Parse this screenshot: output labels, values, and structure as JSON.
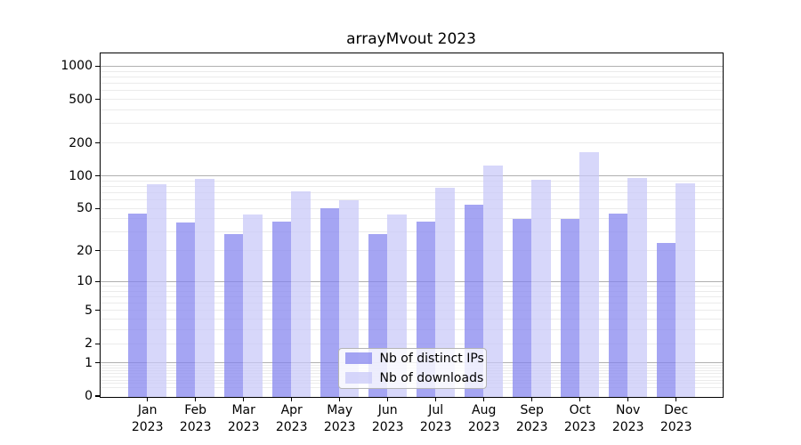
{
  "title": "arrayMvout 2023",
  "chart_data": {
    "type": "bar",
    "title": "arrayMvout 2023",
    "categories": [
      "Jan",
      "Feb",
      "Mar",
      "Apr",
      "May",
      "Jun",
      "Jul",
      "Aug",
      "Sep",
      "Oct",
      "Nov",
      "Dec"
    ],
    "category_year": "2023",
    "series": [
      {
        "name": "Nb of distinct IPs",
        "color": "rgba(130,130,238,0.72)",
        "values": [
          45,
          37,
          29,
          38,
          51,
          29,
          38,
          55,
          40,
          40,
          45,
          24
        ]
      },
      {
        "name": "Nb of downloads",
        "color": "rgba(200,200,248,0.72)",
        "values": [
          84,
          94,
          44,
          72,
          60,
          44,
          79,
          126,
          93,
          165,
          96,
          86
        ]
      }
    ],
    "y_axis": {
      "scale": "log10(value+1)",
      "tick_labels": [
        0,
        1,
        2,
        5,
        10,
        20,
        50,
        100,
        200,
        500,
        1000
      ],
      "major_gridlines": [
        1,
        10,
        100,
        1000
      ],
      "ylim": [
        0,
        1300
      ]
    },
    "grid": "on",
    "legend": {
      "position": "bottom-center",
      "items": [
        "Nb of distinct IPs",
        "Nb of downloads"
      ]
    },
    "colors": {
      "bar_distinct_ips": "rgba(130,130,238,0.72)",
      "bar_downloads": "rgba(200,200,248,0.72)",
      "major_grid": "#b0b0b0",
      "minor_grid": "#ebebeb",
      "axis": "#000000"
    }
  }
}
